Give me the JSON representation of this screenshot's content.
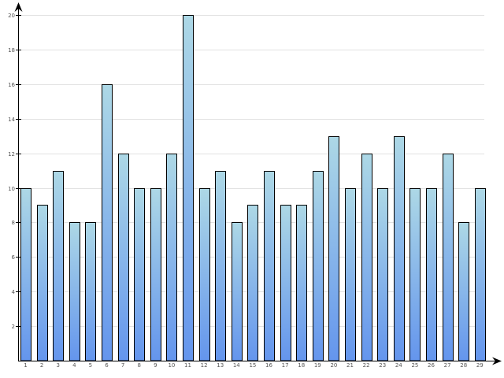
{
  "chart_data": {
    "type": "bar",
    "categories": [
      "1",
      "2",
      "3",
      "4",
      "5",
      "6",
      "7",
      "8",
      "9",
      "10",
      "11",
      "12",
      "13",
      "14",
      "15",
      "16",
      "17",
      "18",
      "19",
      "20",
      "21",
      "22",
      "23",
      "24",
      "25",
      "26",
      "27",
      "28",
      "29"
    ],
    "values": [
      10,
      9,
      11,
      8,
      8,
      16,
      12,
      10,
      10,
      12,
      20,
      10,
      11,
      8,
      9,
      11,
      9,
      9,
      11,
      13,
      10,
      12,
      10,
      13,
      10,
      10,
      12,
      8,
      10
    ],
    "y_ticks": [
      "2",
      "4",
      "6",
      "8",
      "10",
      "12",
      "14",
      "16",
      "18",
      "20"
    ],
    "ylim": [
      0,
      20
    ],
    "grid": true,
    "colors": {
      "bar_top": "#add8e6",
      "bar_bottom": "#6495ed",
      "grid": "#e2e2e2",
      "axis": "#000000"
    }
  }
}
